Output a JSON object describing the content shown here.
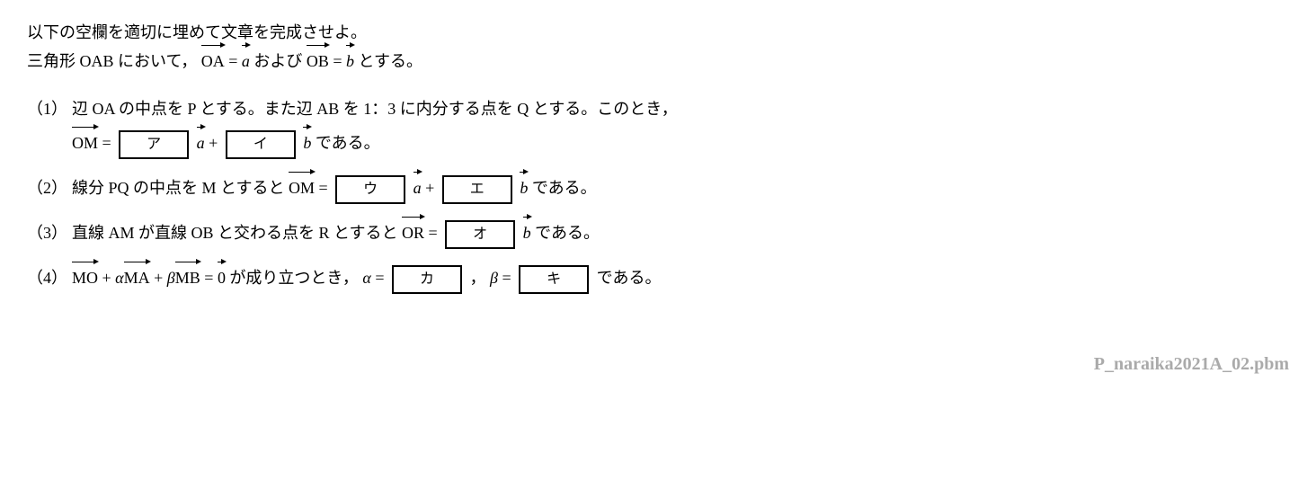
{
  "intro": {
    "line1": "以下の空欄を適切に埋めて文章を完成させよ。",
    "line2_a": "三角形 OAB において，",
    "vecOA": "OA",
    "eq": " = ",
    "veca": "a",
    "and": " および ",
    "vecOB": "OB",
    "vecb": "b",
    "line2_end": "  とする。"
  },
  "q1": {
    "num": "（1）",
    "text1": "辺 OA の中点を P とする。また辺 AB を 1：3 に内分する点を Q とする。このとき，",
    "vecOM": "OM",
    "eq": " = ",
    "boxA": "ア",
    "veca": "a",
    "plus": " + ",
    "boxI": "イ",
    "vecb": "b",
    "end": "  である。"
  },
  "q2": {
    "num": "（2）",
    "text1": "線分 PQ の中点を M とすると ",
    "vecOM": "OM",
    "eq": " = ",
    "boxU": "ウ",
    "veca": "a",
    "plus": " + ",
    "boxE": "エ",
    "vecb": "b",
    "end": "  である。"
  },
  "q3": {
    "num": "（3）",
    "text1": "直線 AM が直線 OB と交わる点を R とすると ",
    "vecOR": "OR",
    "eq": " = ",
    "boxO": "オ",
    "vecb": "b",
    "end": "  である。"
  },
  "q4": {
    "num": "（4）",
    "vecMO": "MO",
    "plus1": " + ",
    "alpha": "α",
    "vecMA": "MA",
    "beta": "β",
    "vecMB": "MB",
    "eq1": " = ",
    "vec0": "0",
    "text1": " が成り立つとき，",
    "alphaeq": " = ",
    "boxKa": "カ",
    "comma": "，",
    "betaeq": " = ",
    "boxKi": "キ",
    "end": " である。"
  },
  "footer": "P_naraika2021A_02.pbm"
}
